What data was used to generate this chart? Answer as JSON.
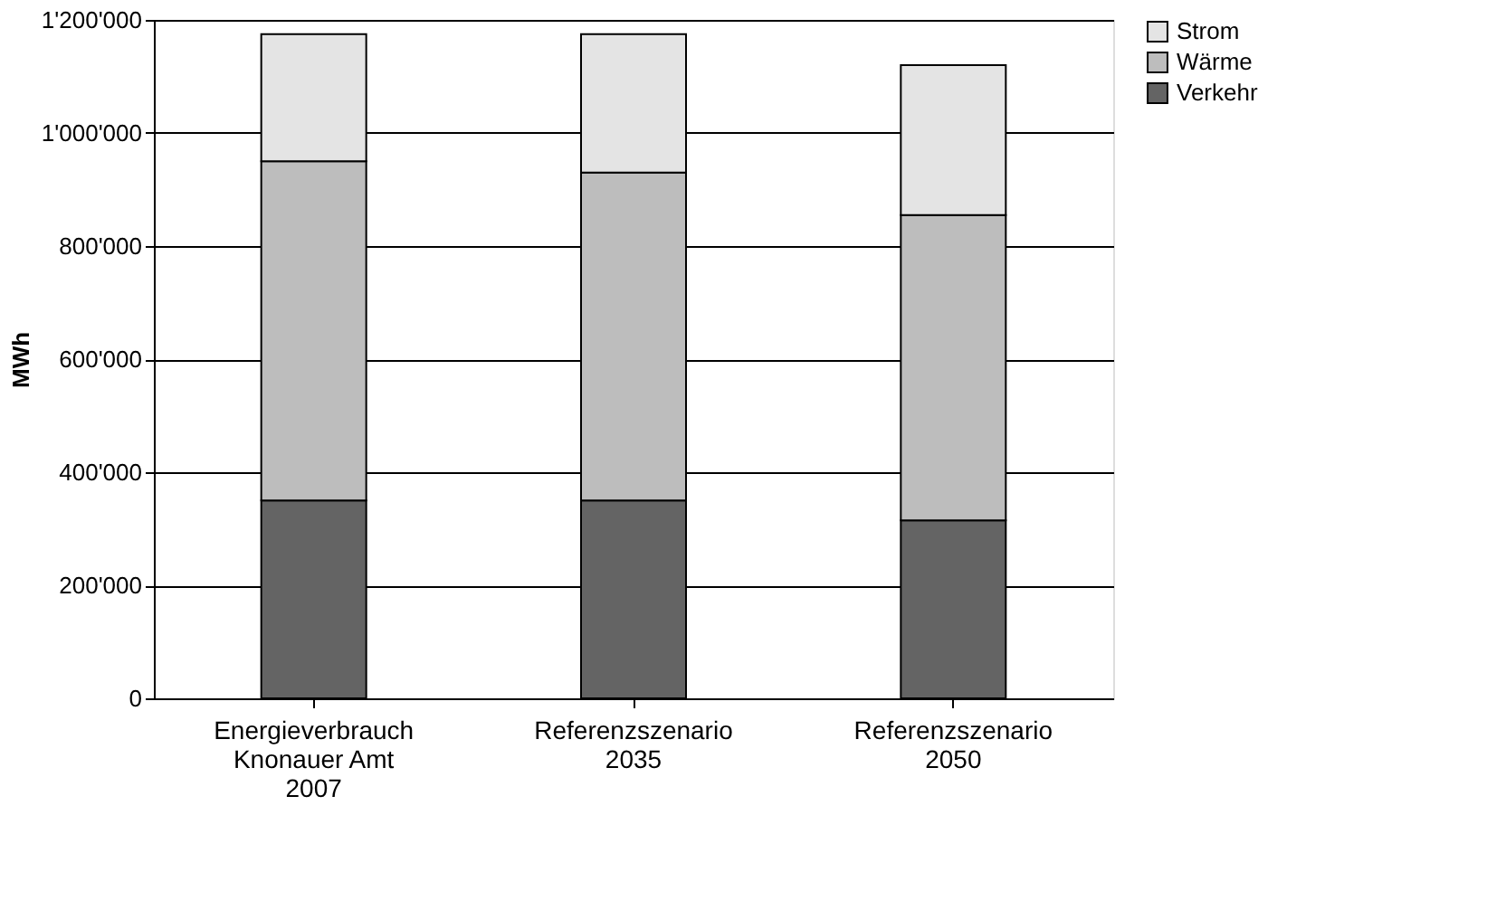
{
  "chart_data": {
    "type": "bar",
    "stacked": true,
    "ylabel": "MWh",
    "categories": [
      "Energieverbrauch\nKnonauer Amt\n2007",
      "Referenzszenario\n2035",
      "Referenzszenario\n2050"
    ],
    "series": [
      {
        "name": "Verkehr",
        "color": "#646464",
        "values": [
          350000,
          350000,
          315000
        ]
      },
      {
        "name": "Wärme",
        "color": "#bdbdbd",
        "values": [
          600000,
          580000,
          540000
        ]
      },
      {
        "name": "Strom",
        "color": "#e4e4e4",
        "values": [
          225000,
          245000,
          265000
        ]
      }
    ],
    "ylim": [
      0,
      1200000
    ],
    "yticks": [
      0,
      {
        "value": 200000,
        "label": "200'000"
      },
      {
        "value": 400000,
        "label": "400'000"
      },
      {
        "value": 600000,
        "label": "600'000"
      },
      {
        "value": 800000,
        "label": "800'000"
      },
      {
        "value": 1000000,
        "label": "1'000'000"
      },
      {
        "value": 1200000,
        "label": "1'200'000"
      }
    ],
    "grid": "y",
    "legend": "right"
  }
}
